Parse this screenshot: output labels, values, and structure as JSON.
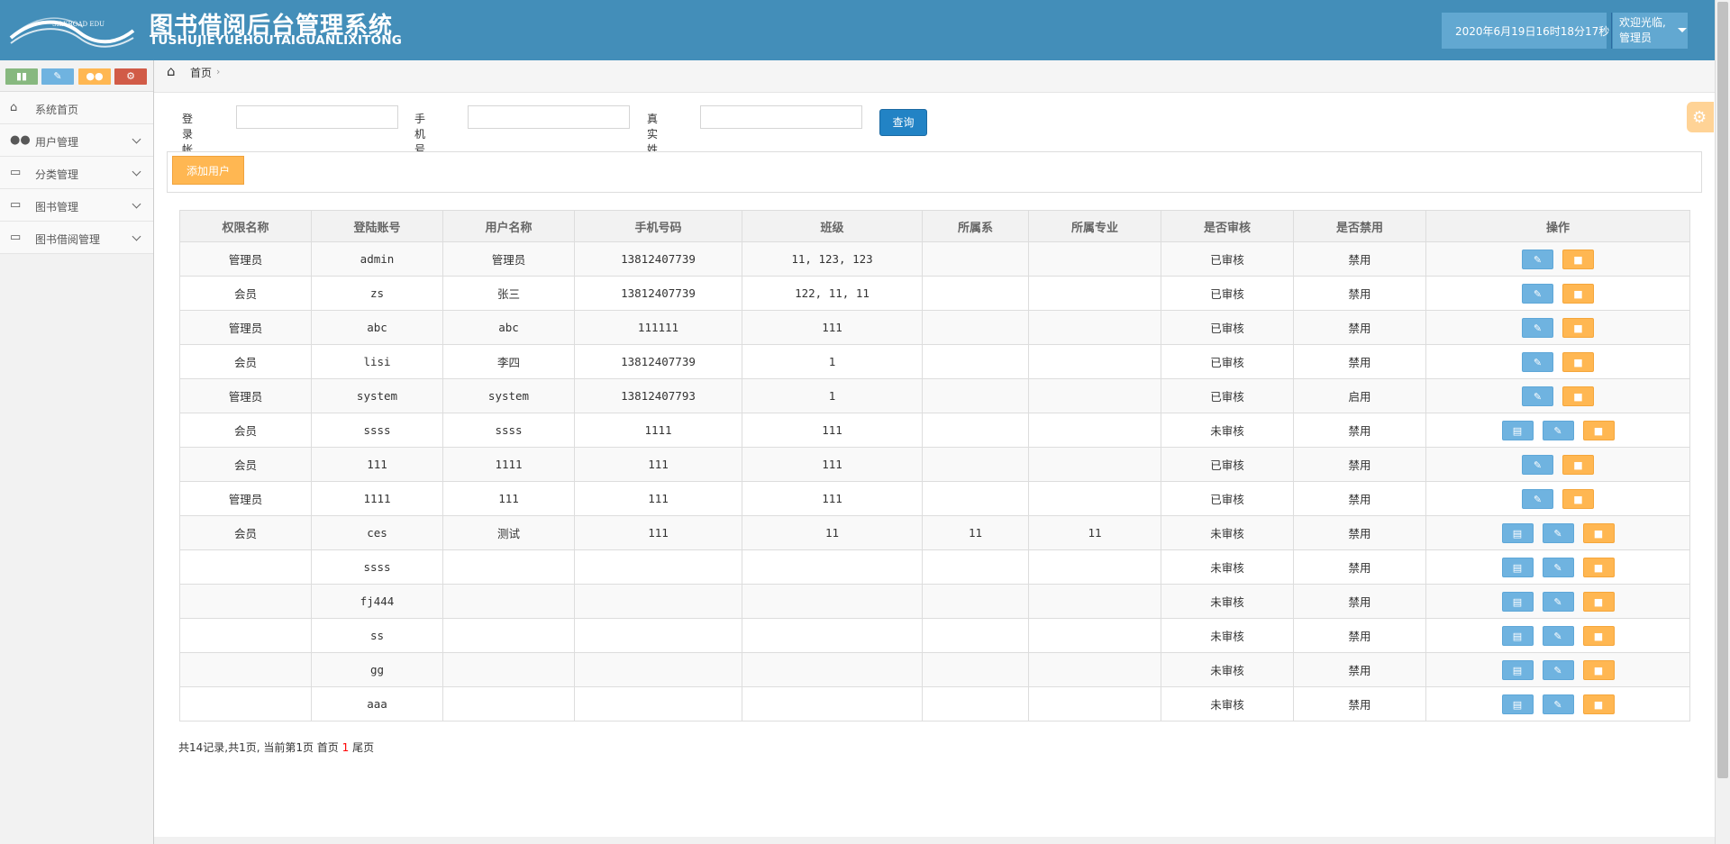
{
  "header": {
    "logo_text": "SILKROAD EDU",
    "title": "图书借阅后台管理系统",
    "subtitle": "TUSHUJIEYUEHOUTAIGUANLIXITONG",
    "datetime": "2020年6月19日16时18分17秒",
    "welcome": "欢迎光临,",
    "user_role": "管理员"
  },
  "sidebar": {
    "shortcuts": [
      {
        "icon": "signal-icon"
      },
      {
        "icon": "pencil-icon"
      },
      {
        "icon": "users-icon"
      },
      {
        "icon": "cogs-icon"
      }
    ],
    "items": [
      {
        "label": "系统首页",
        "icon": "home-icon",
        "has_children": false
      },
      {
        "label": "用户管理",
        "icon": "users-icon",
        "has_children": true
      },
      {
        "label": "分类管理",
        "icon": "desktop-icon",
        "has_children": true
      },
      {
        "label": "图书管理",
        "icon": "desktop-icon",
        "has_children": true
      },
      {
        "label": "图书借阅管理",
        "icon": "desktop-icon",
        "has_children": true
      }
    ]
  },
  "breadcrumb": {
    "home": "首页"
  },
  "search": {
    "account_label": "登录帐号",
    "account_value": "",
    "phone_label": "手机号码",
    "phone_value": "",
    "name_label": "真实姓名",
    "name_value": "",
    "query_label": "查询"
  },
  "toolbar": {
    "add_label": "添加用户"
  },
  "table": {
    "headers": [
      "权限名称",
      "登陆账号",
      "用户名称",
      "手机号码",
      "班级",
      "所属系",
      "所属专业",
      "是否审核",
      "是否禁用",
      "操作"
    ],
    "rows": [
      [
        "管理员",
        "admin",
        "管理员",
        "13812407739",
        "11, 123, 123",
        "",
        "",
        "已审核",
        "禁用"
      ],
      [
        "会员",
        "zs",
        "张三",
        "13812407739",
        "122, 11, 11",
        "",
        "",
        "已审核",
        "禁用"
      ],
      [
        "管理员",
        "abc",
        "abc",
        "111111",
        "111",
        "",
        "",
        "已审核",
        "禁用"
      ],
      [
        "会员",
        "lisi",
        "李四",
        "13812407739",
        "1",
        "",
        "",
        "已审核",
        "禁用"
      ],
      [
        "管理员",
        "system",
        "system",
        "13812407793",
        "1",
        "",
        "",
        "已审核",
        "启用"
      ],
      [
        "会员",
        "ssss",
        "ssss",
        "1111",
        "111",
        "",
        "",
        "未审核",
        "禁用"
      ],
      [
        "会员",
        "111",
        "1111",
        "111",
        "111",
        "",
        "",
        "已审核",
        "禁用"
      ],
      [
        "管理员",
        "1111",
        "111",
        "111",
        "111",
        "",
        "",
        "已审核",
        "禁用"
      ],
      [
        "会员",
        "ces",
        "测试",
        "111",
        "11",
        "11",
        "11",
        "未审核",
        "禁用"
      ],
      [
        "",
        "ssss",
        "",
        "",
        "",
        "",
        "",
        "未审核",
        "禁用"
      ],
      [
        "",
        "fj444",
        "",
        "",
        "",
        "",
        "",
        "未审核",
        "禁用"
      ],
      [
        "",
        "ss",
        "",
        "",
        "",
        "",
        "",
        "未审核",
        "禁用"
      ],
      [
        "",
        "gg",
        "",
        "",
        "",
        "",
        "",
        "未审核",
        "禁用"
      ],
      [
        "",
        "aaa",
        "",
        "",
        "",
        "",
        "",
        "未审核",
        "禁用"
      ]
    ]
  },
  "pager": {
    "summary": "共14记录,共1页, 当前第1页 首页 ",
    "current": "1",
    "last": " 尾页"
  },
  "colors": {
    "header": "#438eb9",
    "approved": "#0000ff",
    "unapproved": "#ff0000",
    "disabled": "#ff0000",
    "enabled": "#008000"
  }
}
